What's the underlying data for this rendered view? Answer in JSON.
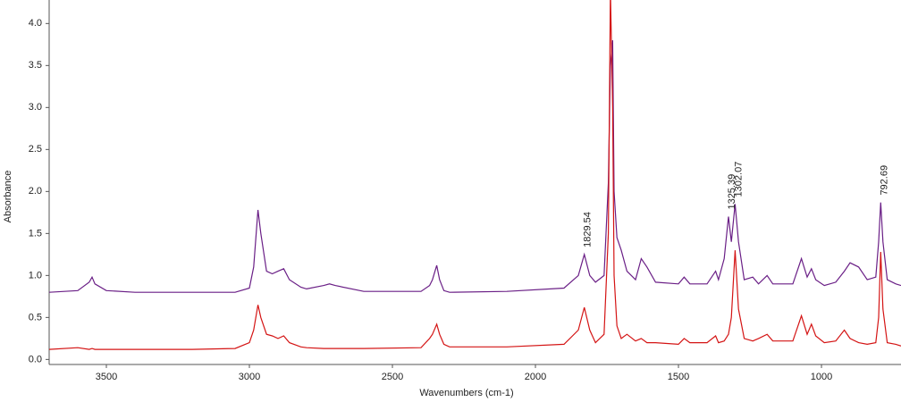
{
  "chart_data": {
    "type": "line",
    "xlabel": "Wavenumbers (cm-1)",
    "ylabel": "Absorbance",
    "x": [
      3700,
      3600,
      3560,
      3550,
      3540,
      3500,
      3400,
      3200,
      3050,
      3000,
      2985,
      2970,
      2960,
      2940,
      2920,
      2900,
      2880,
      2860,
      2820,
      2800,
      2740,
      2720,
      2700,
      2600,
      2400,
      2370,
      2360,
      2345,
      2335,
      2320,
      2300,
      2100,
      1900,
      1850,
      1829,
      1810,
      1790,
      1760,
      1745,
      1738,
      1730,
      1725,
      1715,
      1700,
      1680,
      1650,
      1630,
      1610,
      1580,
      1500,
      1480,
      1460,
      1400,
      1370,
      1360,
      1340,
      1325,
      1315,
      1302,
      1290,
      1270,
      1240,
      1220,
      1190,
      1170,
      1100,
      1070,
      1050,
      1035,
      1020,
      990,
      950,
      920,
      900,
      870,
      840,
      810,
      800,
      793,
      785,
      770,
      740,
      722
    ],
    "series": [
      {
        "color": "#6a1f86",
        "values": [
          0.8,
          0.82,
          0.92,
          0.98,
          0.9,
          0.82,
          0.8,
          0.8,
          0.8,
          0.85,
          1.1,
          1.78,
          1.5,
          1.05,
          1.02,
          1.05,
          1.08,
          0.95,
          0.86,
          0.84,
          0.88,
          0.9,
          0.88,
          0.81,
          0.81,
          0.88,
          0.95,
          1.12,
          0.95,
          0.82,
          0.8,
          0.81,
          0.85,
          1.0,
          1.25,
          1.0,
          0.92,
          1.0,
          2.1,
          3.5,
          3.8,
          2.0,
          1.45,
          1.3,
          1.05,
          0.95,
          1.2,
          1.1,
          0.92,
          0.9,
          0.98,
          0.9,
          0.9,
          1.05,
          0.95,
          1.2,
          1.7,
          1.4,
          1.85,
          1.4,
          0.95,
          0.98,
          0.9,
          1.0,
          0.9,
          0.9,
          1.2,
          0.98,
          1.08,
          0.95,
          0.88,
          0.92,
          1.05,
          1.15,
          1.1,
          0.95,
          0.98,
          1.4,
          1.87,
          1.4,
          0.95,
          0.9,
          0.88
        ]
      },
      {
        "color": "#d41414",
        "values": [
          0.12,
          0.14,
          0.12,
          0.13,
          0.12,
          0.12,
          0.12,
          0.12,
          0.13,
          0.2,
          0.35,
          0.65,
          0.5,
          0.3,
          0.28,
          0.25,
          0.28,
          0.2,
          0.15,
          0.14,
          0.13,
          0.13,
          0.13,
          0.13,
          0.14,
          0.25,
          0.3,
          0.42,
          0.3,
          0.18,
          0.15,
          0.15,
          0.18,
          0.35,
          0.62,
          0.35,
          0.2,
          0.3,
          1.5,
          4.4,
          3.0,
          1.0,
          0.4,
          0.25,
          0.3,
          0.22,
          0.25,
          0.2,
          0.2,
          0.18,
          0.25,
          0.2,
          0.2,
          0.28,
          0.2,
          0.22,
          0.3,
          0.5,
          1.3,
          0.6,
          0.25,
          0.22,
          0.25,
          0.3,
          0.22,
          0.22,
          0.52,
          0.3,
          0.42,
          0.28,
          0.2,
          0.22,
          0.35,
          0.25,
          0.2,
          0.18,
          0.2,
          0.5,
          1.28,
          0.6,
          0.2,
          0.18,
          0.16
        ]
      }
    ],
    "annotations": [
      {
        "text": "1829.54",
        "x": 1829.54
      },
      {
        "text": "1325.39",
        "x": 1325.39
      },
      {
        "text": "1302.07",
        "x": 1302.07
      },
      {
        "text": "792.69",
        "x": 792.69
      }
    ],
    "xlim": [
      3700,
      722
    ],
    "xticks": [
      3500,
      3000,
      2500,
      2000,
      1500,
      1000
    ],
    "ylim": [
      -0.06,
      4.28
    ],
    "yticks": [
      {
        "value": 0,
        "label": "0.0"
      },
      0.5,
      {
        "value": 1,
        "label": "1.0"
      },
      1.5,
      {
        "value": 2,
        "label": "2.0"
      },
      2.5,
      {
        "value": 3,
        "label": "3.0"
      },
      3.5,
      {
        "value": 4,
        "label": "4.0"
      }
    ],
    "grid": false
  }
}
